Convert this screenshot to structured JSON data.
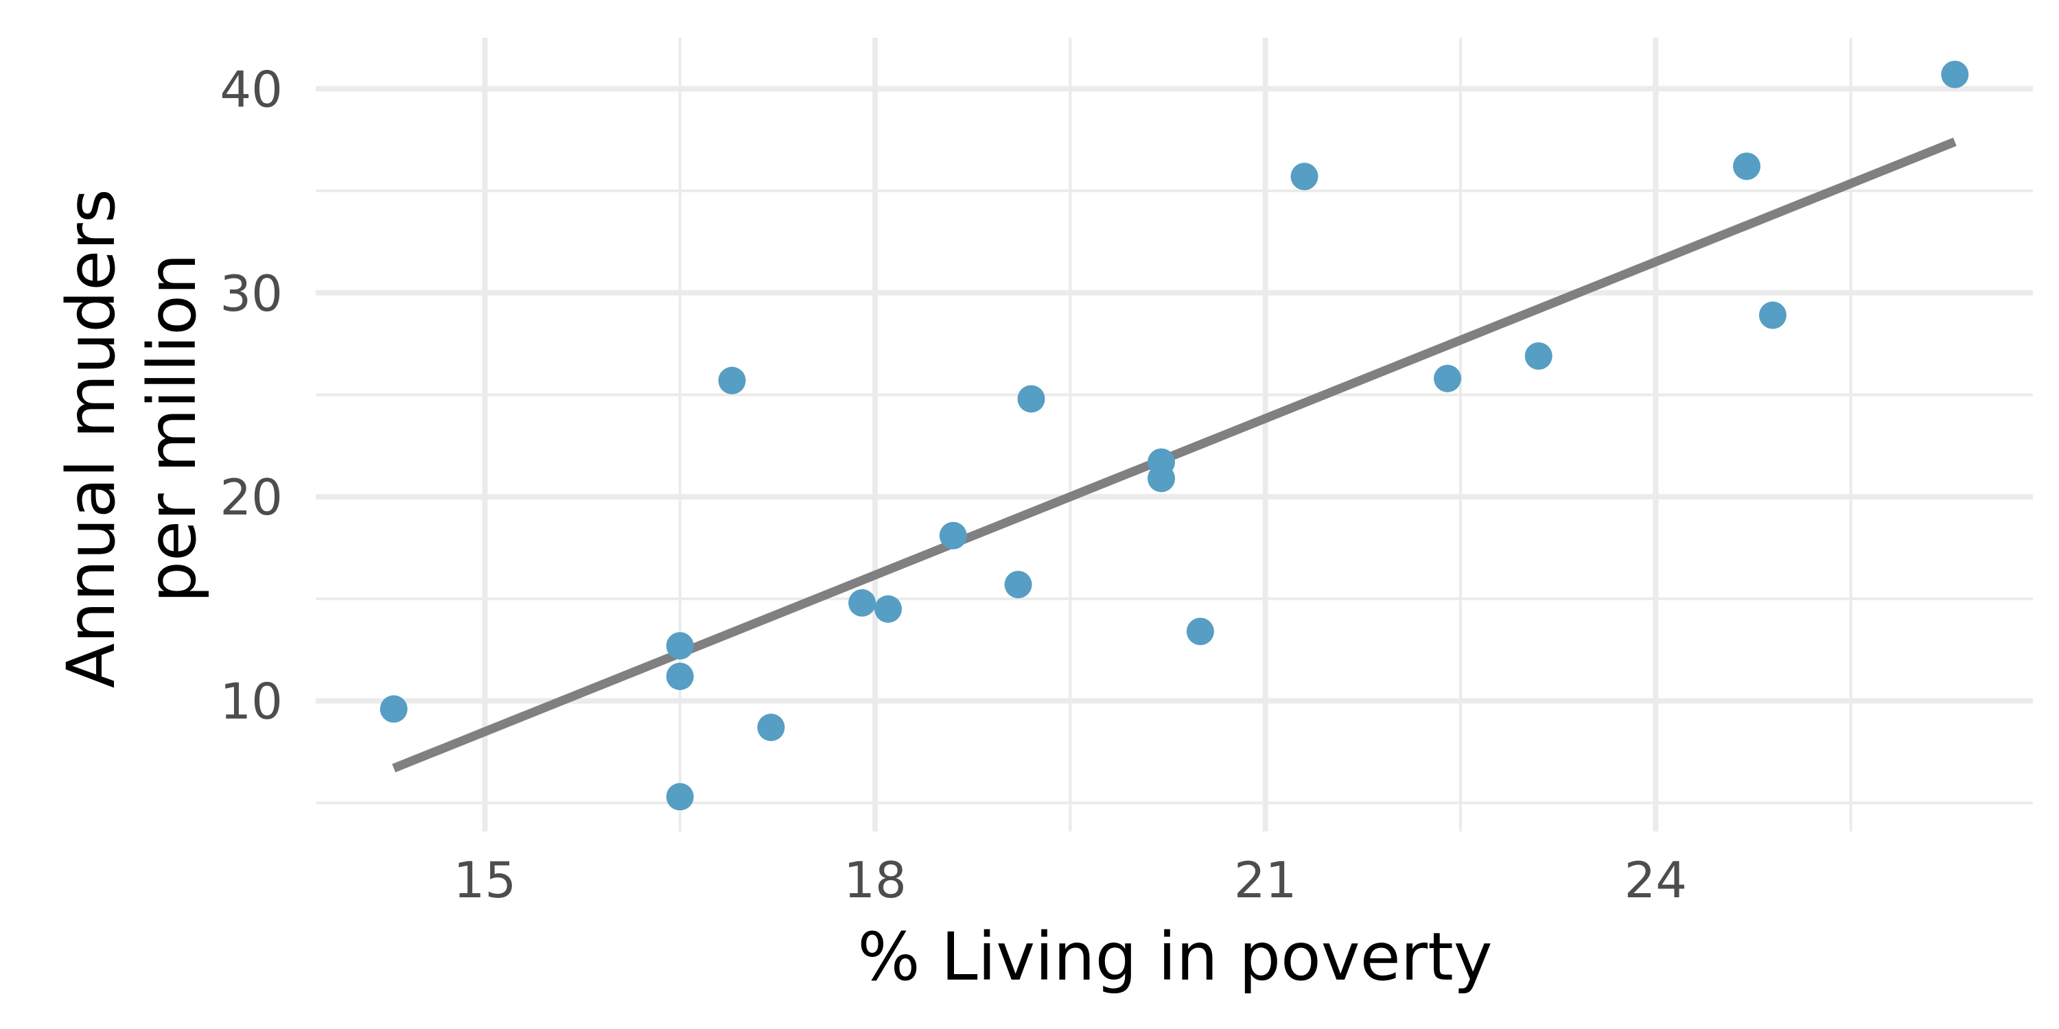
{
  "chart_data": {
    "type": "scatter",
    "title": "",
    "xlabel": "% Living in poverty",
    "ylabel_lines": [
      "Annual muders",
      "per million"
    ],
    "xlim": [
      13.7,
      26.9
    ],
    "ylim": [
      3.6,
      42.5
    ],
    "x_major_ticks": [
      15,
      18,
      21,
      24
    ],
    "x_minor_ticks": [
      16.5,
      19.5,
      22.5,
      25.5
    ],
    "y_major_ticks": [
      10,
      20,
      30,
      40
    ],
    "y_minor_ticks": [
      5,
      15,
      25,
      35
    ],
    "grid": true,
    "legend": "none",
    "point_color": "#569EC3",
    "line_color": "#808080",
    "grid_color": "#EBEBEB",
    "points": [
      {
        "x": 14.3,
        "y": 9.6
      },
      {
        "x": 16.5,
        "y": 12.7
      },
      {
        "x": 16.5,
        "y": 11.2
      },
      {
        "x": 16.5,
        "y": 5.3
      },
      {
        "x": 16.9,
        "y": 25.7
      },
      {
        "x": 17.2,
        "y": 8.7
      },
      {
        "x": 17.9,
        "y": 14.8
      },
      {
        "x": 18.1,
        "y": 14.5
      },
      {
        "x": 18.6,
        "y": 18.1
      },
      {
        "x": 19.1,
        "y": 15.7
      },
      {
        "x": 19.2,
        "y": 24.8
      },
      {
        "x": 20.2,
        "y": 21.7
      },
      {
        "x": 20.2,
        "y": 20.9
      },
      {
        "x": 20.5,
        "y": 13.4
      },
      {
        "x": 21.3,
        "y": 35.7
      },
      {
        "x": 22.4,
        "y": 25.8
      },
      {
        "x": 23.1,
        "y": 26.9
      },
      {
        "x": 24.7,
        "y": 36.2
      },
      {
        "x": 24.9,
        "y": 28.9
      },
      {
        "x": 26.3,
        "y": 40.7
      }
    ],
    "fit_line": [
      {
        "x": 14.3,
        "y": 6.7
      },
      {
        "x": 26.3,
        "y": 37.4
      }
    ]
  }
}
